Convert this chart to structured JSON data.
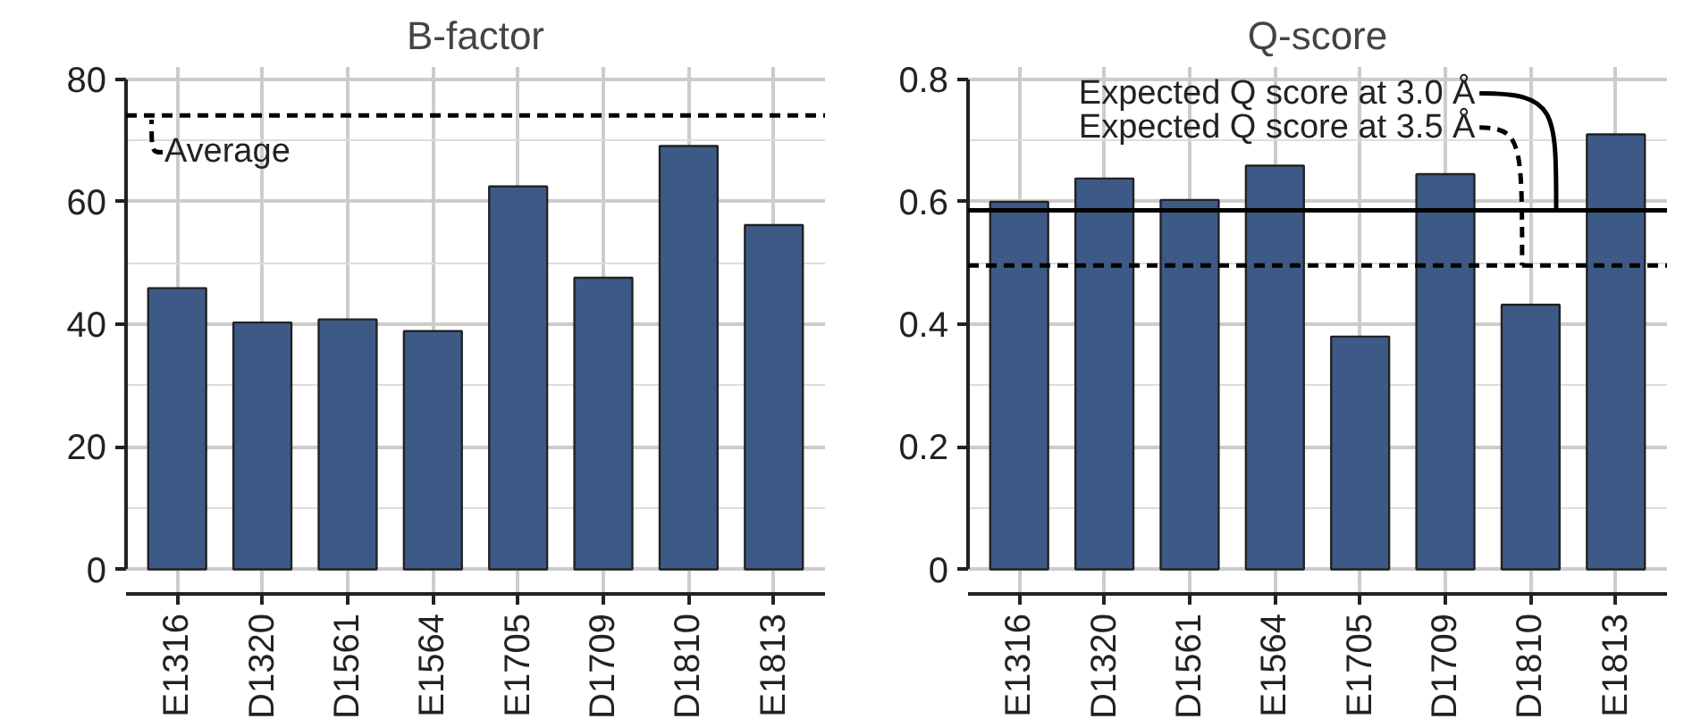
{
  "chart_data": [
    {
      "type": "bar",
      "title": "B-factor",
      "categories": [
        "E1316",
        "D1320",
        "D1561",
        "E1564",
        "E1705",
        "D1709",
        "D1810",
        "E1813"
      ],
      "values": [
        45.9,
        40.3,
        40.8,
        38.9,
        62.5,
        47.6,
        69.1,
        56.2
      ],
      "color": "#3d5a87",
      "ylim": [
        -4,
        82
      ],
      "yticks": [
        0,
        20,
        40,
        60,
        80
      ],
      "grid": true,
      "ref_lines": [
        {
          "axis": "y",
          "value": 74.1,
          "label": "Average",
          "line_style": "dashed",
          "color": "#000000"
        }
      ]
    },
    {
      "type": "bar",
      "title": "Q-score",
      "categories": [
        "E1316",
        "D1320",
        "D1561",
        "E1564",
        "E1705",
        "D1709",
        "D1810",
        "E1813"
      ],
      "values": [
        0.6,
        0.638,
        0.603,
        0.659,
        0.38,
        0.645,
        0.432,
        0.71
      ],
      "color": "#3d5a87",
      "ylim": [
        -0.04,
        0.82
      ],
      "yticks": [
        0,
        0.2,
        0.4,
        0.6,
        0.8
      ],
      "grid": true,
      "ref_lines": [
        {
          "axis": "y",
          "value": 0.586,
          "label": "Expected Q score at 3.0 Å",
          "line_style": "solid",
          "color": "#000000"
        },
        {
          "axis": "y",
          "value": 0.496,
          "label": "Expected Q score at 3.5 Å",
          "line_style": "dashed",
          "color": "#000000"
        }
      ]
    }
  ]
}
